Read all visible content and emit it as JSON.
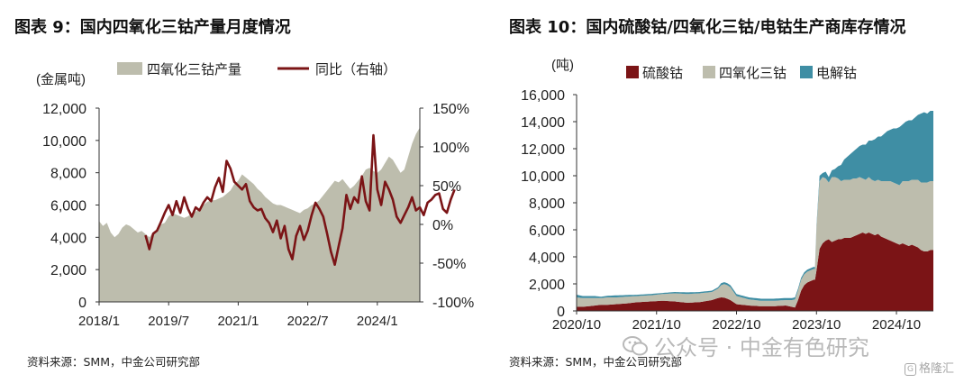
{
  "figures": [
    {
      "title": "图表 9：国内四氧化三钴产量月度情况",
      "source": "资料来源：SMM，中金公司研究部"
    },
    {
      "title": "图表 10：国内硫酸钴/四氧化三钴/电钴生产商库存情况",
      "source": "资料来源：SMM，中金公司研究部"
    }
  ],
  "chart_data": [
    {
      "type": "area",
      "title": "图表 9：国内四氧化三钴产量月度情况",
      "ylabel": "(金属吨)",
      "ylim": [
        0,
        12000
      ],
      "yticks": [
        "0",
        "2,000",
        "4,000",
        "6,000",
        "8,000",
        "10,000",
        "12,000"
      ],
      "y2lim": [
        -100,
        150
      ],
      "y2ticks": [
        "-100%",
        "-50%",
        "0%",
        "50%",
        "100%",
        "150%"
      ],
      "xtick_labels": [
        "2018/1",
        "2019/7",
        "2021/1",
        "2022/7",
        "2024/1"
      ],
      "xtick_index": [
        0,
        18,
        36,
        54,
        72
      ],
      "legend": [
        "四氧化三钴产量",
        "同比（右轴）"
      ],
      "colors": {
        "production": "#bdbdad",
        "yoy": "#7b1416"
      },
      "x_start": "2018/1",
      "series": [
        {
          "name": "四氧化三钴产量",
          "kind": "area",
          "axis": "left",
          "values": [
            5000,
            4700,
            4900,
            4300,
            4000,
            4200,
            4600,
            4800,
            4700,
            4500,
            4300,
            4400,
            4200,
            4000,
            4300,
            4500,
            4800,
            4900,
            5300,
            5500,
            5400,
            5300,
            5200,
            5300,
            5500,
            5600,
            5800,
            6000,
            6200,
            6300,
            6300,
            6400,
            6500,
            6700,
            6900,
            7300,
            7500,
            7900,
            7700,
            7500,
            7300,
            7000,
            6800,
            6500,
            6300,
            6100,
            6000,
            6000,
            5900,
            5800,
            5700,
            5600,
            5500,
            5700,
            5800,
            6000,
            6100,
            6300,
            6600,
            6900,
            7200,
            7500,
            7400,
            7600,
            7300,
            7000,
            7200,
            7500,
            7800,
            8200,
            8300,
            8100,
            8000,
            8200,
            8600,
            9000,
            8800,
            8400,
            8000,
            8200,
            9000,
            9800,
            10400,
            10800
          ]
        },
        {
          "name": "同比（右轴）",
          "kind": "line",
          "axis": "right",
          "start_index": 12,
          "values": [
            -14,
            -32,
            -12,
            -8,
            3,
            15,
            25,
            12,
            30,
            15,
            35,
            20,
            10,
            22,
            18,
            28,
            35,
            30,
            48,
            60,
            42,
            82,
            72,
            55,
            50,
            45,
            52,
            30,
            22,
            18,
            20,
            8,
            2,
            -10,
            5,
            -18,
            -2,
            -32,
            -45,
            -15,
            -2,
            -20,
            -8,
            12,
            28,
            20,
            10,
            -12,
            -35,
            -52,
            -28,
            -5,
            38,
            20,
            35,
            28,
            62,
            30,
            18,
            115,
            45,
            25,
            55,
            45,
            32,
            10,
            2,
            12,
            22,
            35,
            18,
            22,
            12,
            28,
            32,
            38,
            40,
            20,
            15,
            32,
            45
          ]
        }
      ]
    },
    {
      "type": "area",
      "stacked": true,
      "title": "图表 10：国内硫酸钴/四氧化三钴/电钴生产商库存情况",
      "ylabel": "(吨)",
      "ylim": [
        0,
        16000
      ],
      "yticks": [
        "0",
        "2,000",
        "4,000",
        "6,000",
        "8,000",
        "10,000",
        "12,000",
        "14,000",
        "16,000"
      ],
      "xtick_labels": [
        "2020/10",
        "2021/10",
        "2022/10",
        "2023/10",
        "2024/10"
      ],
      "xtick_index": [
        0,
        52,
        104,
        156,
        208
      ],
      "legend": [
        "硫酸钴",
        "四氧化三钴",
        "电解钴"
      ],
      "colors": {
        "硫酸钴": "#7b1416",
        "四氧化三钴": "#bdbdad",
        "电解钴": "#3f8ea4"
      },
      "x_start": "2020/10",
      "x_step": "week",
      "knots": [
        0,
        4,
        8,
        12,
        16,
        20,
        26,
        32,
        40,
        48,
        56,
        64,
        72,
        80,
        88,
        92,
        94,
        96,
        98,
        100,
        104,
        112,
        120,
        128,
        136,
        140,
        142,
        144,
        146,
        148,
        150,
        152,
        154,
        155,
        156,
        158,
        160,
        162,
        164,
        166,
        168,
        170,
        172,
        174,
        176,
        178,
        180,
        182,
        184,
        186,
        188,
        190,
        192,
        194,
        196,
        198,
        200,
        202,
        204,
        206,
        208,
        210,
        212,
        214,
        216,
        218,
        220,
        222,
        224,
        226,
        228,
        230,
        232
      ],
      "series": [
        {
          "name": "硫酸钴",
          "values": [
            300,
            300,
            350,
            400,
            450,
            450,
            500,
            550,
            650,
            700,
            750,
            700,
            600,
            650,
            800,
            950,
            1000,
            980,
            900,
            800,
            500,
            400,
            350,
            350,
            400,
            300,
            250,
            800,
            1500,
            1900,
            2100,
            2200,
            2300,
            2300,
            3000,
            4600,
            5000,
            5200,
            5300,
            5100,
            5200,
            5300,
            5300,
            5400,
            5400,
            5400,
            5500,
            5600,
            5700,
            5800,
            5700,
            5800,
            5700,
            5600,
            5700,
            5500,
            5400,
            5300,
            5200,
            5100,
            5000,
            4900,
            5000,
            4900,
            4800,
            4900,
            4800,
            4700,
            4500,
            4400,
            4400,
            4500,
            4500
          ]
        },
        {
          "name": "四氧化三钴",
          "values": [
            700,
            650,
            600,
            550,
            500,
            550,
            500,
            500,
            450,
            450,
            500,
            600,
            650,
            650,
            600,
            700,
            900,
            1000,
            1000,
            950,
            600,
            450,
            400,
            400,
            400,
            500,
            600,
            700,
            800,
            800,
            800,
            800,
            800,
            800,
            3200,
            5000,
            4900,
            4600,
            4200,
            4800,
            4700,
            4500,
            4300,
            4300,
            4300,
            4300,
            4300,
            4200,
            4200,
            4000,
            4000,
            4100,
            4000,
            4000,
            4000,
            4100,
            4200,
            4300,
            4400,
            4400,
            4400,
            4400,
            4600,
            4700,
            4800,
            4800,
            4900,
            5000,
            5000,
            5100,
            5100,
            5100,
            5100
          ]
        },
        {
          "name": "电解钴",
          "values": [
            200,
            150,
            150,
            150,
            100,
            120,
            150,
            120,
            100,
            100,
            80,
            100,
            120,
            100,
            100,
            100,
            150,
            150,
            150,
            150,
            150,
            150,
            150,
            150,
            150,
            150,
            150,
            150,
            150,
            150,
            150,
            150,
            150,
            150,
            150,
            400,
            300,
            500,
            400,
            500,
            600,
            900,
            1200,
            1500,
            1700,
            1900,
            2000,
            2200,
            2300,
            2500,
            2600,
            2700,
            2900,
            3100,
            3200,
            3300,
            3500,
            3700,
            3800,
            4000,
            4100,
            4300,
            4200,
            4400,
            4500,
            4400,
            4600,
            4800,
            5100,
            5200,
            5100,
            5200,
            5200
          ]
        }
      ]
    }
  ],
  "watermark": {
    "text": "公众号 · 中金有色研究",
    "brand": "格隆汇",
    "brand_mark": "G"
  }
}
